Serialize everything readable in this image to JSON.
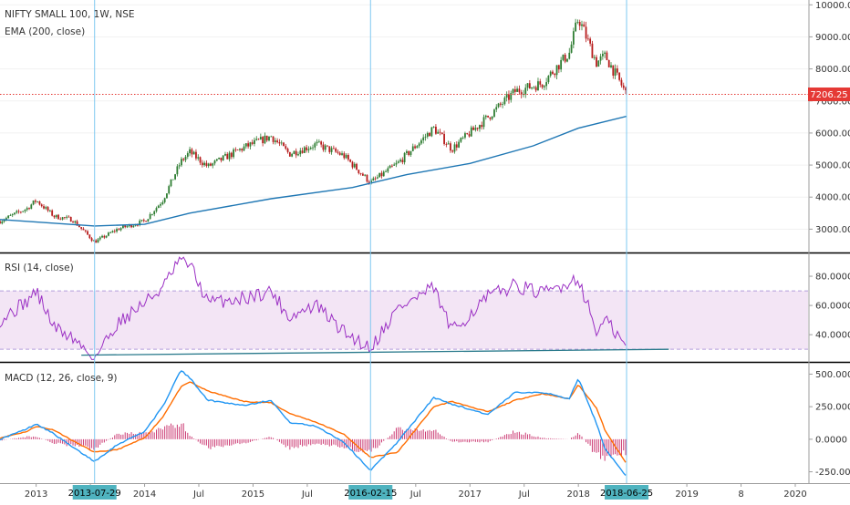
{
  "header": {
    "symbol_line": "NIFTY SMALL 100, 1W, NSE",
    "ema_line": "EMA (200, close)"
  },
  "price_badge": "7206.25",
  "rsi_title": "RSI (14, close)",
  "macd_title": "MACD (12, 26, close, 9)",
  "colors": {
    "up": "#26a69a",
    "down": "#ef5350",
    "candle_body_up": "#2e7d32",
    "candle_body_down": "#b71c1c",
    "ema": "#1f77b4",
    "rsi": "#9b30c4",
    "rsi_band": "#f3e5f5",
    "macd": "#2196f3",
    "signal": "#ff6d00",
    "hist_pos": "#c2185b",
    "hist_neg": "#c2185b",
    "crosshair": "#7ec8f0",
    "price_line": "#e53935",
    "badge_bg": "#e53935",
    "date_badge_bg": "#4fb3bf"
  },
  "x_axis": {
    "labels": [
      "2013",
      "Jul",
      "2014",
      "Jul",
      "2015",
      "Jul",
      "Jul",
      "2017",
      "Jul",
      "2018",
      "2019",
      "8",
      "2020"
    ],
    "highlighted_dates": [
      "2013-07-29",
      "2016-02-15",
      "2018-06-25"
    ]
  },
  "chart_data": [
    {
      "type": "candlestick",
      "title": "NIFTY SMALL 100, 1W, NSE",
      "overlay": "EMA (200, close)",
      "y_ticks": [
        "10000.00",
        "9000.00",
        "8000.00",
        "7000.00",
        "6000.00",
        "5000.00",
        "4000.00",
        "3000.00"
      ],
      "ylim": [
        2300,
        10150
      ],
      "last_price": 7206.25,
      "close_series": [
        [
          "2012-09",
          3250
        ],
        [
          "2012-12",
          3650
        ],
        [
          "2013-01",
          3900
        ],
        [
          "2013-03",
          3400
        ],
        [
          "2013-05",
          3300
        ],
        [
          "2013-07-29",
          2600
        ],
        [
          "2013-10",
          3000
        ],
        [
          "2014-01",
          3250
        ],
        [
          "2014-03",
          3900
        ],
        [
          "2014-05",
          5100
        ],
        [
          "2014-06",
          5400
        ],
        [
          "2014-08",
          4950
        ],
        [
          "2014-12",
          5550
        ],
        [
          "2015-03",
          5900
        ],
        [
          "2015-05",
          5350
        ],
        [
          "2015-08",
          5650
        ],
        [
          "2015-11",
          5300
        ],
        [
          "2016-02-15",
          4450
        ],
        [
          "2016-05",
          5050
        ],
        [
          "2016-09",
          6150
        ],
        [
          "2016-11",
          5500
        ],
        [
          "2017-03",
          6500
        ],
        [
          "2017-06",
          7300
        ],
        [
          "2017-09",
          7550
        ],
        [
          "2017-12",
          8500
        ],
        [
          "2018-01",
          9600
        ],
        [
          "2018-03",
          8200
        ],
        [
          "2018-04",
          8400
        ],
        [
          "2018-06-25",
          7206.25
        ]
      ],
      "ema_series": [
        [
          "2012-09",
          3300
        ],
        [
          "2013-07-29",
          3100
        ],
        [
          "2014-01",
          3150
        ],
        [
          "2014-06",
          3500
        ],
        [
          "2015-03",
          3950
        ],
        [
          "2015-12",
          4300
        ],
        [
          "2016-06",
          4700
        ],
        [
          "2017-01",
          5050
        ],
        [
          "2017-08",
          5600
        ],
        [
          "2018-01",
          6150
        ],
        [
          "2018-06-25",
          6520
        ]
      ]
    },
    {
      "type": "line",
      "title": "RSI (14, close)",
      "y_ticks": [
        "80.0000",
        "60.0000",
        "40.0000"
      ],
      "ylim": [
        22,
        95
      ],
      "band": [
        30,
        70
      ],
      "series": [
        {
          "values": [
            [
              "2012-09",
              50
            ],
            [
              "2012-12",
              63
            ],
            [
              "2013-01",
              70
            ],
            [
              "2013-03",
              45
            ],
            [
              "2013-05",
              38
            ],
            [
              "2013-07-29",
              24
            ],
            [
              "2013-10",
              48
            ],
            [
              "2014-01",
              62
            ],
            [
              "2014-03",
              72
            ],
            [
              "2014-05",
              92
            ],
            [
              "2014-06",
              88
            ],
            [
              "2014-08",
              62
            ],
            [
              "2014-12",
              65
            ],
            [
              "2015-03",
              70
            ],
            [
              "2015-05",
              52
            ],
            [
              "2015-08",
              60
            ],
            [
              "2015-11",
              42
            ],
            [
              "2016-02-15",
              31
            ],
            [
              "2016-05",
              58
            ],
            [
              "2016-09",
              72
            ],
            [
              "2016-11",
              42
            ],
            [
              "2017-03",
              66
            ],
            [
              "2017-06",
              74
            ],
            [
              "2017-09",
              68
            ],
            [
              "2017-12",
              76
            ],
            [
              "2018-01",
              79
            ],
            [
              "2018-03",
              42
            ],
            [
              "2018-04",
              50
            ],
            [
              "2018-06-25",
              31
            ]
          ]
        },
        {
          "values": [
            [
              "2013-06",
              26
            ],
            [
              "2018-11",
              30
            ]
          ]
        }
      ]
    },
    {
      "type": "line",
      "title": "MACD (12, 26, close, 9)",
      "y_ticks": [
        "500.0000",
        "250.0000",
        "0.0000",
        "-250.0000"
      ],
      "ylim": [
        -330,
        580
      ],
      "series": [
        {
          "values": [
            [
              "2012-09",
              0
            ],
            [
              "2012-12",
              80
            ],
            [
              "2013-01",
              120
            ],
            [
              "2013-03",
              40
            ],
            [
              "2013-05",
              -60
            ],
            [
              "2013-07-29",
              -170
            ],
            [
              "2013-10",
              -40
            ],
            [
              "2014-01",
              60
            ],
            [
              "2014-03",
              250
            ],
            [
              "2014-05",
              530
            ],
            [
              "2014-06",
              470
            ],
            [
              "2014-08",
              300
            ],
            [
              "2014-12",
              260
            ],
            [
              "2015-03",
              300
            ],
            [
              "2015-05",
              130
            ],
            [
              "2015-08",
              100
            ],
            [
              "2015-11",
              -20
            ],
            [
              "2016-02-15",
              -240
            ],
            [
              "2016-05",
              -20
            ],
            [
              "2016-09",
              320
            ],
            [
              "2016-11",
              270
            ],
            [
              "2017-03",
              190
            ],
            [
              "2017-06",
              360
            ],
            [
              "2017-09",
              360
            ],
            [
              "2017-12",
              310
            ],
            [
              "2018-01",
              470
            ],
            [
              "2018-03",
              120
            ],
            [
              "2018-04",
              -80
            ],
            [
              "2018-06-25",
              -290
            ]
          ]
        },
        {
          "values": [
            [
              "2012-09",
              10
            ],
            [
              "2012-12",
              60
            ],
            [
              "2013-01",
              100
            ],
            [
              "2013-03",
              70
            ],
            [
              "2013-05",
              -10
            ],
            [
              "2013-07-29",
              -100
            ],
            [
              "2013-10",
              -80
            ],
            [
              "2014-01",
              10
            ],
            [
              "2014-03",
              170
            ],
            [
              "2014-05",
              400
            ],
            [
              "2014-06",
              440
            ],
            [
              "2014-08",
              370
            ],
            [
              "2014-12",
              290
            ],
            [
              "2015-03",
              280
            ],
            [
              "2015-05",
              200
            ],
            [
              "2015-08",
              130
            ],
            [
              "2015-11",
              40
            ],
            [
              "2016-02-15",
              -140
            ],
            [
              "2016-05",
              -100
            ],
            [
              "2016-09",
              250
            ],
            [
              "2016-11",
              290
            ],
            [
              "2017-03",
              210
            ],
            [
              "2017-06",
              300
            ],
            [
              "2017-09",
              350
            ],
            [
              "2017-12",
              310
            ],
            [
              "2018-01",
              420
            ],
            [
              "2018-03",
              240
            ],
            [
              "2018-04",
              60
            ],
            [
              "2018-06-25",
              -190
            ]
          ]
        }
      ],
      "histogram": [
        [
          "2012-09",
          -10
        ],
        [
          "2012-12",
          20
        ],
        [
          "2013-01",
          20
        ],
        [
          "2013-03",
          -30
        ],
        [
          "2013-05",
          -50
        ],
        [
          "2013-07-29",
          -70
        ],
        [
          "2013-10",
          40
        ],
        [
          "2014-01",
          50
        ],
        [
          "2014-03",
          80
        ],
        [
          "2014-05",
          130
        ],
        [
          "2014-06",
          30
        ],
        [
          "2014-08",
          -70
        ],
        [
          "2014-12",
          -30
        ],
        [
          "2015-03",
          20
        ],
        [
          "2015-05",
          -70
        ],
        [
          "2015-08",
          -30
        ],
        [
          "2015-11",
          -60
        ],
        [
          "2016-02-15",
          -100
        ],
        [
          "2016-05",
          80
        ],
        [
          "2016-09",
          70
        ],
        [
          "2016-11",
          -20
        ],
        [
          "2017-03",
          -20
        ],
        [
          "2017-06",
          60
        ],
        [
          "2017-09",
          10
        ],
        [
          "2017-12",
          0
        ],
        [
          "2018-01",
          50
        ],
        [
          "2018-03",
          -120
        ],
        [
          "2018-04",
          -140
        ],
        [
          "2018-06-25",
          -100
        ]
      ]
    }
  ]
}
